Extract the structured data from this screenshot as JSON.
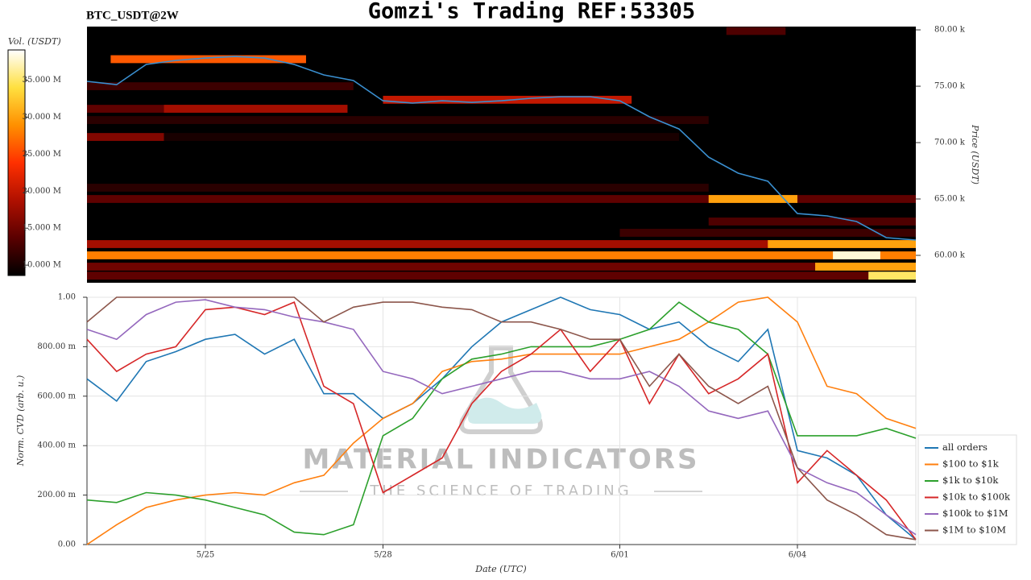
{
  "chart_data": [
    {
      "type": "heatmap",
      "title": "Gomzi's Trading REF:53305",
      "subtitle": "BTC_USDT@2W",
      "ylabel": "Price (USDT)",
      "colorbar_label": "Vol. (USDT)",
      "xlim": [
        0,
        14
      ],
      "ylim": [
        57570,
        80290
      ],
      "yticks": [
        {
          "value": 60000,
          "label": "60.00 k"
        },
        {
          "value": 65000,
          "label": "65.00 k"
        },
        {
          "value": 70000,
          "label": "70.00 k"
        },
        {
          "value": 75000,
          "label": "75.00 k"
        },
        {
          "value": 80000,
          "label": "80.00 k"
        }
      ],
      "clim": [
        8600000,
        39100000
      ],
      "cticks": [
        {
          "value": 10000000,
          "label": "10.000 M"
        },
        {
          "value": 15000000,
          "label": "15.000 M"
        },
        {
          "value": 20000000,
          "label": "20.000 M"
        },
        {
          "value": 25000000,
          "label": "25.000 M"
        },
        {
          "value": 30000000,
          "label": "30.000 M"
        },
        {
          "value": 35000000,
          "label": "35.000 M"
        }
      ],
      "colormap": [
        "#000000",
        "#5a0000",
        "#b01000",
        "#ff3000",
        "#ff9000",
        "#ffe040",
        "#ffffff"
      ],
      "bin": 700,
      "heatmap": [
        {
          "price": 60000,
          "start": 0,
          "end": 14,
          "volume": 28000000
        },
        {
          "price": 60000,
          "start": 12.6,
          "end": 13.4,
          "volume": 38000000
        },
        {
          "price": 61000,
          "start": 0,
          "end": 14,
          "volume": 18000000
        },
        {
          "price": 61000,
          "start": 11.5,
          "end": 14,
          "volume": 30000000
        },
        {
          "price": 59000,
          "start": 0,
          "end": 14,
          "volume": 15000000
        },
        {
          "price": 59000,
          "start": 12.3,
          "end": 14,
          "volume": 30000000
        },
        {
          "price": 58200,
          "start": 0,
          "end": 14,
          "volume": 14000000
        },
        {
          "price": 58200,
          "start": 13.2,
          "end": 14,
          "volume": 35000000
        },
        {
          "price": 62000,
          "start": 9,
          "end": 14,
          "volume": 12000000
        },
        {
          "price": 63000,
          "start": 10.5,
          "end": 14,
          "volume": 13000000
        },
        {
          "price": 65000,
          "start": 0,
          "end": 14,
          "volume": 14000000
        },
        {
          "price": 65000,
          "start": 10.5,
          "end": 12,
          "volume": 30000000
        },
        {
          "price": 66000,
          "start": 0,
          "end": 10.5,
          "volume": 11000000
        },
        {
          "price": 70500,
          "start": 0,
          "end": 1.3,
          "volume": 16000000
        },
        {
          "price": 70500,
          "start": 1.3,
          "end": 10,
          "volume": 10000000
        },
        {
          "price": 72000,
          "start": 0,
          "end": 10.5,
          "volume": 11000000
        },
        {
          "price": 73000,
          "start": 0,
          "end": 4.4,
          "volume": 14000000
        },
        {
          "price": 73000,
          "start": 1.3,
          "end": 4.4,
          "volume": 18000000
        },
        {
          "price": 73800,
          "start": 5,
          "end": 9.2,
          "volume": 20000000
        },
        {
          "price": 75000,
          "start": 0,
          "end": 4.5,
          "volume": 12000000
        },
        {
          "price": 77400,
          "start": 0.4,
          "end": 3.7,
          "volume": 26000000
        },
        {
          "price": 79900,
          "start": 10.8,
          "end": 11.8,
          "volume": 13000000
        }
      ],
      "x": [
        0,
        0.5,
        1,
        1.5,
        2,
        2.5,
        3,
        3.5,
        4,
        4.5,
        5,
        5.5,
        6,
        6.5,
        7,
        7.5,
        8,
        8.5,
        9,
        9.5,
        10,
        10.5,
        11,
        11.5,
        12,
        12.5,
        13,
        13.5,
        14
      ],
      "price": {
        "color": "#3a8fd0",
        "values": [
          75430,
          75140,
          76930,
          77290,
          77500,
          77640,
          77500,
          76930,
          76000,
          75500,
          73710,
          73500,
          73710,
          73570,
          73710,
          73930,
          74070,
          74070,
          73710,
          72290,
          71210,
          68710,
          67290,
          66570,
          63710,
          63500,
          63000,
          61570,
          61360
        ]
      }
    },
    {
      "type": "line",
      "xlabel": "Date (UTC)",
      "ylabel": "Norm. CVD (arb. u.)",
      "watermark": [
        "MATERIAL INDICATORS",
        "THE SCIENCE OF TRADING"
      ],
      "grid": true,
      "legend": "right",
      "xlim": [
        0,
        14
      ],
      "xticks": [
        {
          "value": 2,
          "label": "5/25"
        },
        {
          "value": 5,
          "label": "5/28"
        },
        {
          "value": 9,
          "label": "6/01"
        },
        {
          "value": 12,
          "label": "6/04"
        }
      ],
      "ylim": [
        0,
        1
      ],
      "yticks": [
        {
          "value": 0,
          "label": "0.00"
        },
        {
          "value": 0.2,
          "label": "200.00 m"
        },
        {
          "value": 0.4,
          "label": "400.00 m"
        },
        {
          "value": 0.6,
          "label": "600.00 m"
        },
        {
          "value": 0.8,
          "label": "800.00 m"
        },
        {
          "value": 1,
          "label": "1.00"
        }
      ],
      "x": [
        0,
        0.5,
        1,
        1.5,
        2,
        2.5,
        3,
        3.5,
        4,
        4.5,
        5,
        5.5,
        6,
        6.5,
        7,
        7.5,
        8,
        8.5,
        9,
        9.5,
        10,
        10.5,
        11,
        11.5,
        12,
        12.5,
        13,
        13.5,
        14
      ],
      "series": [
        {
          "name": "all orders",
          "color": "#1f77b4",
          "values": [
            0.67,
            0.58,
            0.74,
            0.78,
            0.83,
            0.85,
            0.77,
            0.83,
            0.61,
            0.61,
            0.51,
            0.57,
            0.67,
            0.8,
            0.9,
            0.95,
            1.0,
            0.95,
            0.93,
            0.87,
            0.9,
            0.8,
            0.74,
            0.87,
            0.38,
            0.35,
            0.28,
            0.12,
            0.02
          ]
        },
        {
          "name": "$100 to $1k",
          "color": "#ff7f0e",
          "values": [
            0,
            0.08,
            0.15,
            0.18,
            0.2,
            0.21,
            0.2,
            0.25,
            0.28,
            0.41,
            0.51,
            0.57,
            0.7,
            0.74,
            0.75,
            0.77,
            0.77,
            0.77,
            0.77,
            0.8,
            0.83,
            0.9,
            0.98,
            1.0,
            0.9,
            0.64,
            0.61,
            0.51,
            0.47
          ]
        },
        {
          "name": "$1k to $10k",
          "color": "#2ca02c",
          "values": [
            0.18,
            0.17,
            0.21,
            0.2,
            0.18,
            0.15,
            0.12,
            0.05,
            0.04,
            0.08,
            0.44,
            0.51,
            0.67,
            0.75,
            0.77,
            0.8,
            0.8,
            0.8,
            0.83,
            0.87,
            0.98,
            0.9,
            0.87,
            0.77,
            0.44,
            0.44,
            0.44,
            0.47,
            0.43
          ]
        },
        {
          "name": "$10k to $100k",
          "color": "#d62728",
          "values": [
            0.83,
            0.7,
            0.77,
            0.8,
            0.95,
            0.96,
            0.93,
            0.98,
            0.64,
            0.57,
            0.21,
            0.28,
            0.35,
            0.57,
            0.7,
            0.77,
            0.87,
            0.7,
            0.83,
            0.57,
            0.77,
            0.61,
            0.67,
            0.77,
            0.25,
            0.38,
            0.28,
            0.18,
            0.02
          ]
        },
        {
          "name": "$100k to $1M",
          "color": "#9467bd",
          "values": [
            0.87,
            0.83,
            0.93,
            0.98,
            0.99,
            0.96,
            0.95,
            0.92,
            0.9,
            0.87,
            0.7,
            0.67,
            0.61,
            0.64,
            0.67,
            0.7,
            0.7,
            0.67,
            0.67,
            0.7,
            0.64,
            0.54,
            0.51,
            0.54,
            0.31,
            0.25,
            0.21,
            0.12,
            0.04
          ]
        },
        {
          "name": "$1M to $10M",
          "color": "#8c564b",
          "values": [
            0.9,
            1.0,
            1.0,
            1.0,
            1.0,
            1.0,
            1.0,
            1.0,
            0.9,
            0.96,
            0.98,
            0.98,
            0.96,
            0.95,
            0.9,
            0.9,
            0.87,
            0.83,
            0.83,
            0.64,
            0.77,
            0.64,
            0.57,
            0.64,
            0.31,
            0.18,
            0.12,
            0.04,
            0.02
          ]
        }
      ]
    }
  ]
}
